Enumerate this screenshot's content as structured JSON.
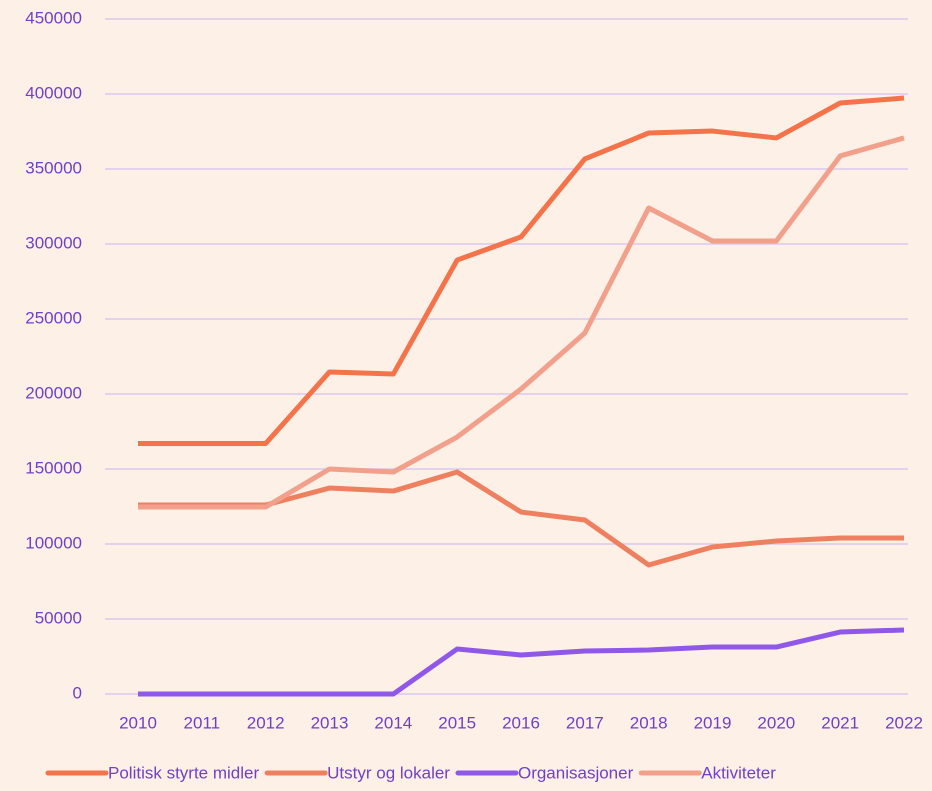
{
  "chart_data": {
    "type": "line",
    "x": [
      2010,
      2011,
      2012,
      2013,
      2014,
      2015,
      2016,
      2017,
      2018,
      2019,
      2020,
      2021,
      2022
    ],
    "series": [
      {
        "name": "Politisk styrte midler",
        "color": "#f4734a",
        "values": [
          167000,
          167000,
          167000,
          214700,
          213300,
          289300,
          304700,
          356700,
          374000,
          375300,
          370700,
          394000,
          397300
        ]
      },
      {
        "name": "Utstyr og lokaler",
        "color": "#ee8060",
        "values": [
          126000,
          126000,
          126000,
          137300,
          135300,
          148000,
          121300,
          116000,
          86000,
          98000,
          102000,
          104000,
          104000
        ]
      },
      {
        "name": "Organisasjoner",
        "color": "#8f58e8",
        "values": [
          0,
          0,
          0,
          0,
          0,
          30000,
          26000,
          28700,
          29300,
          31300,
          31300,
          41300,
          42700
        ]
      },
      {
        "name": "Aktiviteter",
        "color": "#f2a08c",
        "values": [
          124700,
          124700,
          124700,
          150000,
          148000,
          171300,
          203300,
          240700,
          324000,
          302000,
          302000,
          358700,
          370700
        ]
      }
    ],
    "ylim": [
      0,
      450000
    ],
    "yticks": [
      0,
      50000,
      100000,
      150000,
      200000,
      250000,
      300000,
      350000,
      400000,
      450000
    ],
    "xlim": [
      2010,
      2022
    ],
    "grid": true,
    "legend": "bottom"
  }
}
